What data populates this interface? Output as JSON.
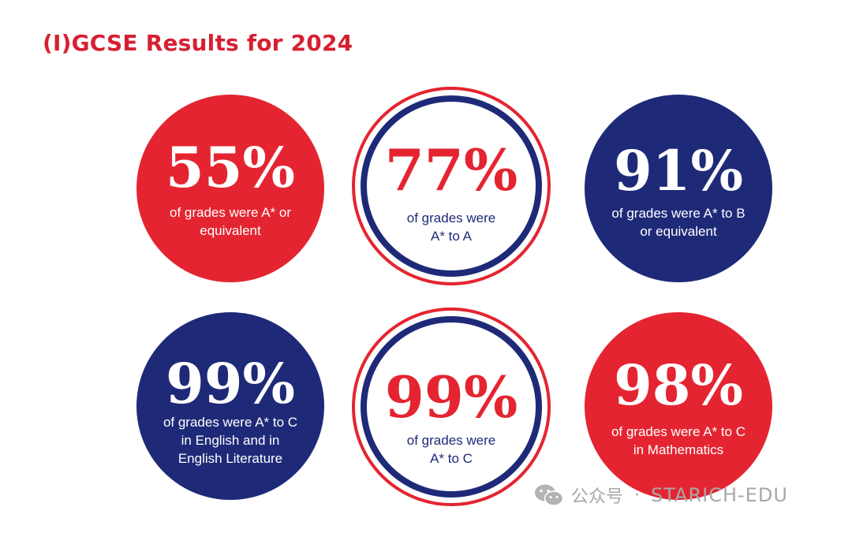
{
  "title": "(I)GCSE Results for 2024",
  "colors": {
    "red": "#e42531",
    "navy": "#1e2a78",
    "title_red": "#d62031"
  },
  "stats": [
    {
      "value": "55%",
      "caption": "of grades were A* or\nequivalent",
      "style": "red-fill"
    },
    {
      "value": "77%",
      "caption": "of grades were\nA* to A",
      "style": "white-ring"
    },
    {
      "value": "91%",
      "caption": "of grades were A* to B\nor equivalent",
      "style": "navy-fill"
    },
    {
      "value": "99%",
      "caption": "of grades were A* to C\nin English and in\nEnglish Literature",
      "style": "navy-fill"
    },
    {
      "value": "99%",
      "caption": "of grades were\nA* to C",
      "style": "white-ring"
    },
    {
      "value": "98%",
      "caption": "of grades were A* to C\nin Mathematics",
      "style": "red-fill"
    }
  ],
  "watermark": {
    "icon": "wechat-icon",
    "prefix": "公众号",
    "separator": "·",
    "name": "STARICH-EDU"
  }
}
